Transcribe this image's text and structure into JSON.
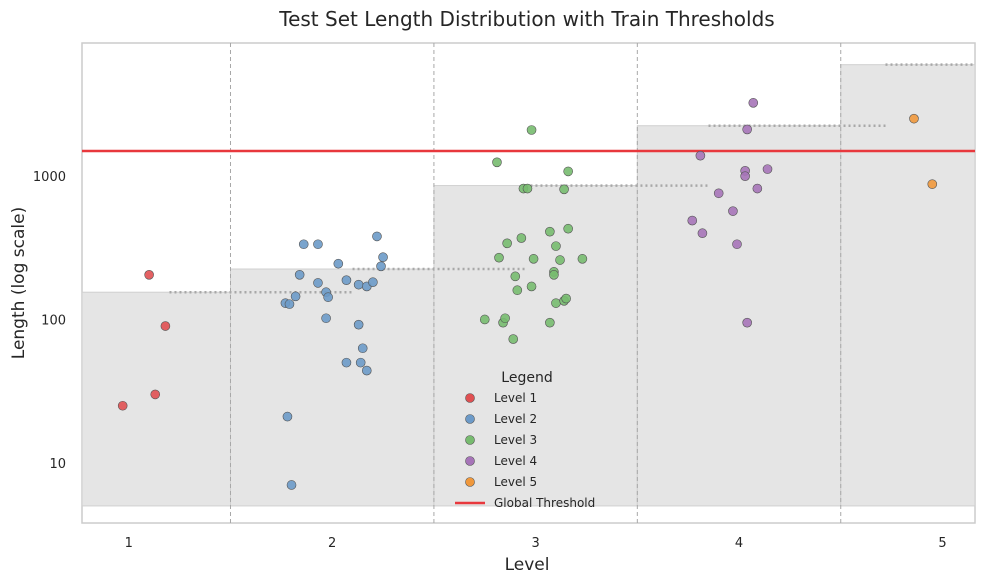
{
  "chart_data": {
    "type": "scatter",
    "title": "Test Set Length Distribution with Train Thresholds",
    "xlabel": "Level",
    "ylabel": "Length (log scale)",
    "yscale": "log",
    "xlim": [
      0.77,
      5.16
    ],
    "ylim": [
      3.8,
      8500
    ],
    "x_ticks": [
      1,
      2,
      3,
      4,
      5
    ],
    "x_tick_labels": [
      "1",
      "2",
      "3",
      "4",
      "5"
    ],
    "y_ticks": [
      10,
      100,
      1000
    ],
    "y_tick_labels": [
      "10",
      "100",
      "1000"
    ],
    "grid": false,
    "legend": {
      "title": "Legend",
      "position": "bottom-center"
    },
    "global_threshold": {
      "name": "Global Threshold",
      "value": 1500,
      "color": "#e8383d"
    },
    "level_boundaries": [
      1.5,
      2.5,
      3.5,
      4.5
    ],
    "level_bands": [
      {
        "level": 1,
        "low": 5,
        "high": 155
      },
      {
        "level": 2,
        "low": 5,
        "high": 225
      },
      {
        "level": 3,
        "low": 5,
        "high": 860
      },
      {
        "level": 4,
        "low": 5,
        "high": 2250
      },
      {
        "level": 5,
        "low": 5,
        "high": 6000
      }
    ],
    "train_thresholds": [
      {
        "x_start": 1.2,
        "x_end": 2.1,
        "value": 155
      },
      {
        "x_start": 2.1,
        "x_end": 2.95,
        "value": 225
      },
      {
        "x_start": 2.95,
        "x_end": 3.85,
        "value": 860
      },
      {
        "x_start": 3.85,
        "x_end": 4.72,
        "value": 2250
      },
      {
        "x_start": 4.72,
        "x_end": 5.15,
        "value": 6000
      }
    ],
    "series": [
      {
        "name": "Level 1",
        "color": "#e05052",
        "points": [
          [
            0.97,
            25
          ],
          [
            1.1,
            205
          ],
          [
            1.13,
            30
          ],
          [
            1.18,
            90
          ]
        ]
      },
      {
        "name": "Level 2",
        "color": "#6c9ac8",
        "points": [
          [
            1.77,
            130
          ],
          [
            1.78,
            21
          ],
          [
            1.79,
            128
          ],
          [
            1.8,
            7
          ],
          [
            1.82,
            145
          ],
          [
            1.84,
            205
          ],
          [
            1.86,
            335
          ],
          [
            1.93,
            335
          ],
          [
            1.93,
            180
          ],
          [
            1.97,
            155
          ],
          [
            1.97,
            102
          ],
          [
            1.98,
            143
          ],
          [
            2.03,
            245
          ],
          [
            2.07,
            188
          ],
          [
            2.07,
            50
          ],
          [
            2.13,
            92
          ],
          [
            2.13,
            175
          ],
          [
            2.14,
            50
          ],
          [
            2.15,
            63
          ],
          [
            2.17,
            44
          ],
          [
            2.17,
            170
          ],
          [
            2.2,
            182
          ],
          [
            2.22,
            380
          ],
          [
            2.24,
            235
          ],
          [
            2.25,
            272
          ]
        ]
      },
      {
        "name": "Level 3",
        "color": "#77bb6f",
        "points": [
          [
            2.75,
            100
          ],
          [
            2.81,
            1250
          ],
          [
            2.82,
            270
          ],
          [
            2.84,
            95
          ],
          [
            2.85,
            102
          ],
          [
            2.86,
            340
          ],
          [
            2.89,
            73
          ],
          [
            2.9,
            200
          ],
          [
            2.91,
            160
          ],
          [
            2.93,
            370
          ],
          [
            2.94,
            820
          ],
          [
            2.96,
            820
          ],
          [
            2.98,
            2100
          ],
          [
            2.98,
            170
          ],
          [
            2.99,
            265
          ],
          [
            3.07,
            95
          ],
          [
            3.07,
            410
          ],
          [
            3.09,
            215
          ],
          [
            3.09,
            205
          ],
          [
            3.1,
            130
          ],
          [
            3.1,
            325
          ],
          [
            3.12,
            260
          ],
          [
            3.14,
            135
          ],
          [
            3.14,
            810
          ],
          [
            3.15,
            140
          ],
          [
            3.16,
            1080
          ],
          [
            3.16,
            430
          ],
          [
            3.23,
            265
          ]
        ]
      },
      {
        "name": "Level 4",
        "color": "#a674b8",
        "points": [
          [
            3.77,
            490
          ],
          [
            3.81,
            1390
          ],
          [
            3.82,
            400
          ],
          [
            3.9,
            760
          ],
          [
            3.97,
            570
          ],
          [
            3.99,
            335
          ],
          [
            4.03,
            1090
          ],
          [
            4.03,
            1000
          ],
          [
            4.04,
            95
          ],
          [
            4.04,
            2120
          ],
          [
            4.07,
            3250
          ],
          [
            4.09,
            820
          ],
          [
            4.14,
            1120
          ]
        ]
      },
      {
        "name": "Level 5",
        "color": "#f0983c",
        "points": [
          [
            4.86,
            2520
          ],
          [
            4.95,
            880
          ]
        ]
      }
    ]
  }
}
